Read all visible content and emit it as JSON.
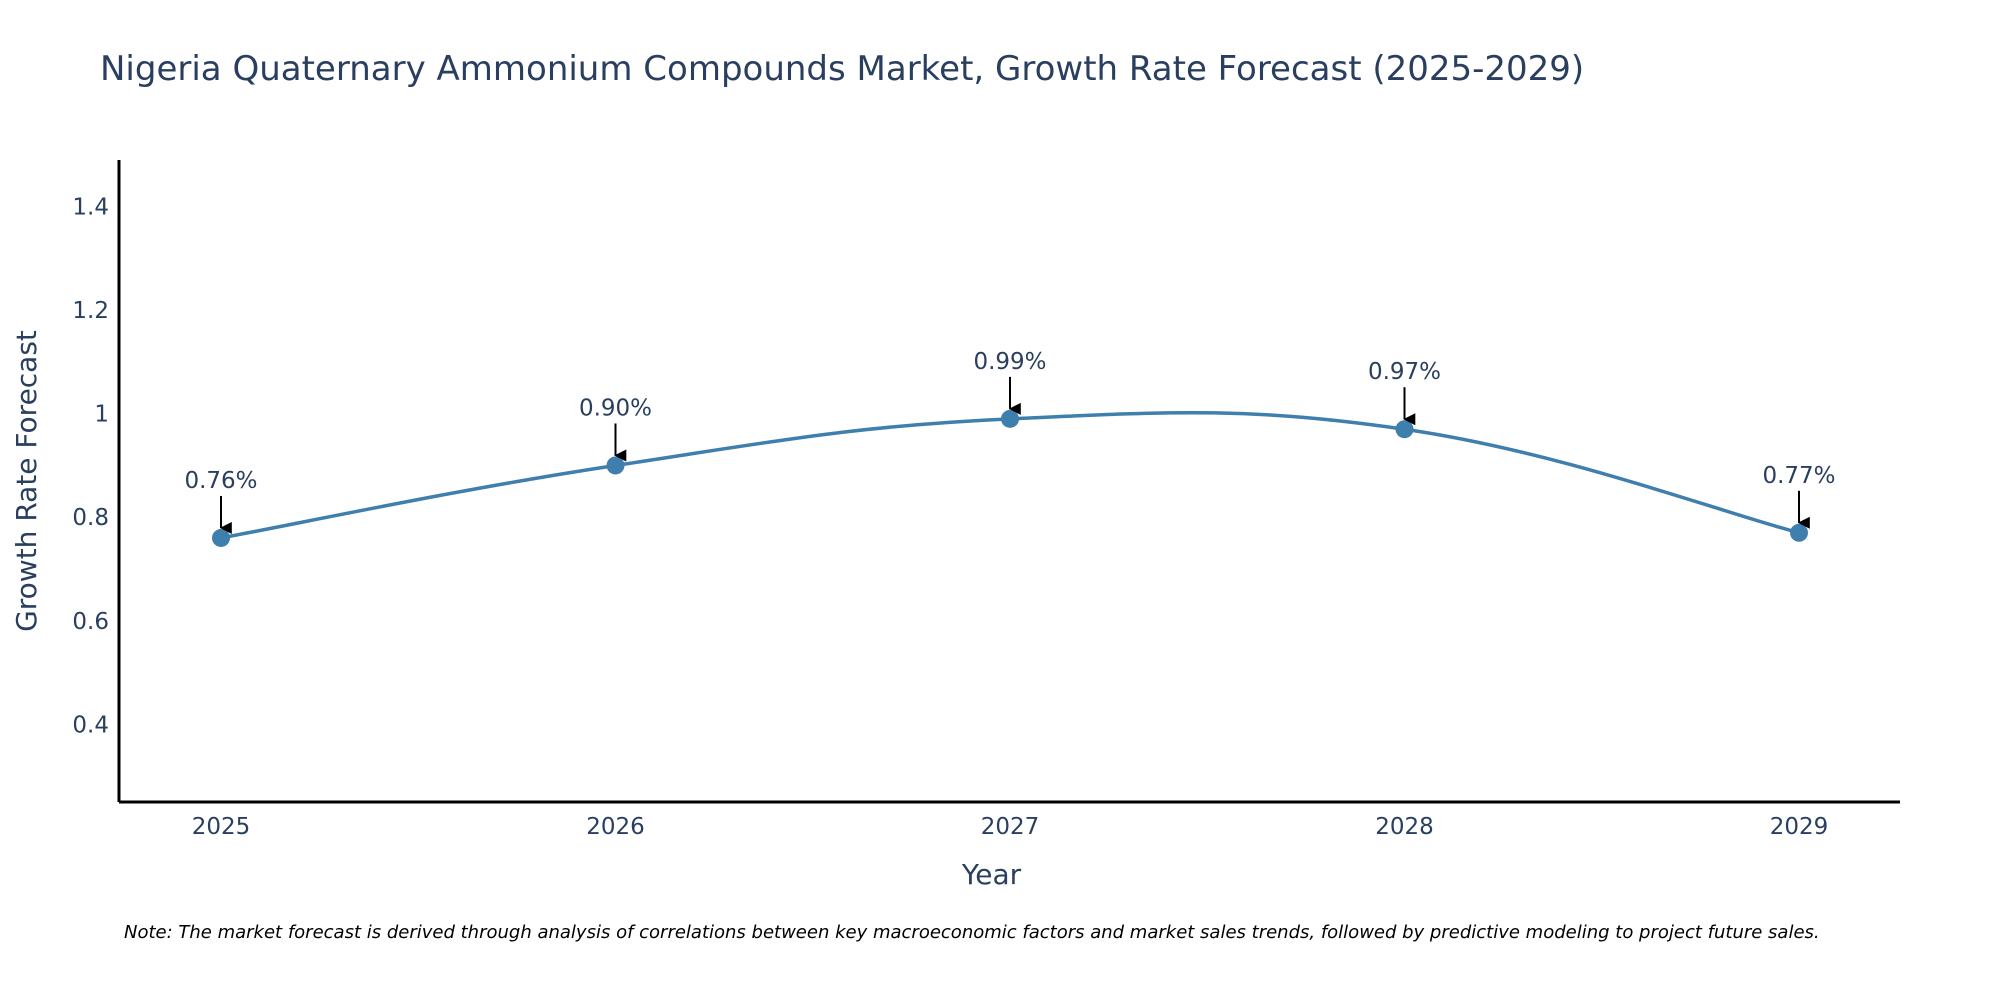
{
  "chart_data": {
    "type": "line",
    "title": "Nigeria Quaternary Ammonium Compounds Market, Growth Rate Forecast (2025-2029)",
    "xlabel": "Year",
    "ylabel": "Growth Rate Forecast",
    "categories": [
      "2025",
      "2026",
      "2027",
      "2028",
      "2029"
    ],
    "series": [
      {
        "name": "Growth Rate Forecast",
        "values": [
          0.76,
          0.9,
          0.99,
          0.97,
          0.77
        ],
        "labels": [
          "0.76%",
          "0.90%",
          "0.99%",
          "0.97%",
          "0.77%"
        ]
      }
    ],
    "ylim": [
      0.25,
      1.49
    ],
    "yticks": [
      0.4,
      0.6,
      0.8,
      1,
      1.2,
      1.4
    ],
    "ytick_labels": [
      "0.4",
      "0.6",
      "0.8",
      "1",
      "1.2",
      "1.4"
    ],
    "grid": false,
    "line_color": "#3f7fad",
    "marker_color": "#3f7fad",
    "arrow_color": "#000000",
    "axis_color": "#000000",
    "note": "Note: The market forecast is derived through analysis of correlations between key macroeconomic factors and market sales trends, followed by predictive modeling to project future sales."
  }
}
